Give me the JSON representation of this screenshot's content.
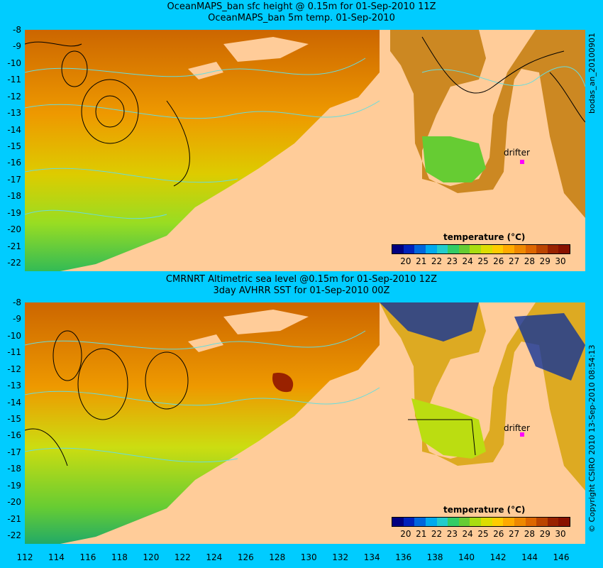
{
  "top_panel": {
    "title_line1": "OceanMAPS_ban sfc height @ 0.15m for 01-Sep-2010 11Z",
    "title_line2": "OceanMAPS_ban 5m temp. 01-Sep-2010",
    "side_label": "bodas_an_20100901",
    "drifter_label": "drifter",
    "y_ticks": [
      "-8",
      "-9",
      "-10",
      "-11",
      "-12",
      "-13",
      "-14",
      "-15",
      "-16",
      "-17",
      "-18",
      "-19",
      "-20",
      "-21",
      "-22"
    ]
  },
  "bottom_panel": {
    "title_line1": "CMRNRT Altimetric sea level  @0.15m  for 01-Sep-2010 12Z",
    "title_line2": "3day AVHRR SST for 01-Sep-2010 00Z",
    "side_label": "© Copyright CSIRO 2010   13-Sep-2010 08:54:13",
    "drifter_label": "drifter",
    "y_ticks": [
      "-8",
      "-9",
      "-10",
      "-11",
      "-12",
      "-13",
      "-14",
      "-15",
      "-16",
      "-17",
      "-18",
      "-19",
      "-20",
      "-21",
      "-22"
    ]
  },
  "x_ticks": [
    "112",
    "114",
    "116",
    "118",
    "120",
    "122",
    "124",
    "126",
    "128",
    "130",
    "132",
    "134",
    "136",
    "138",
    "140",
    "142",
    "144",
    "146"
  ],
  "colorbar": {
    "title": "temperature (°C)",
    "ticks": [
      "20",
      "21",
      "22",
      "23",
      "24",
      "25",
      "26",
      "27",
      "28",
      "29",
      "30"
    ],
    "colors": [
      "#000080",
      "#0022bb",
      "#0066dd",
      "#00aaee",
      "#22cccc",
      "#33cc66",
      "#66cc33",
      "#aadd11",
      "#dddd00",
      "#ffcc00",
      "#ffaa00",
      "#ee8800",
      "#dd6600",
      "#bb4400",
      "#992200",
      "#881100"
    ]
  },
  "colors": {
    "background": "#00ccff",
    "land": "#ffcc99",
    "contour": "#66dddd"
  }
}
